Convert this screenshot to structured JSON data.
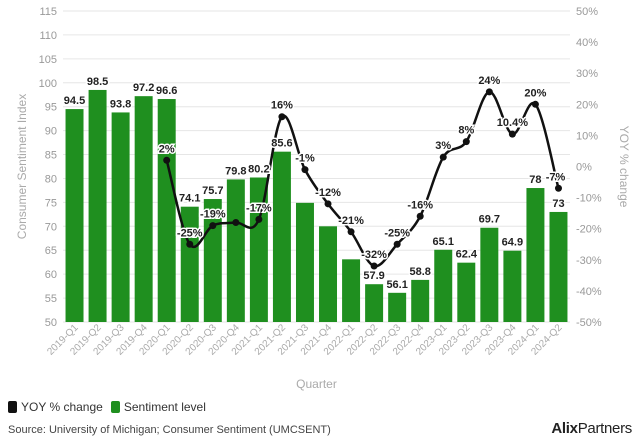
{
  "chart_data": {
    "type": "bar",
    "xlabel": "Quarter",
    "ylabel": "Consumer Sentiment Index",
    "y2label": "YOY % change",
    "ylim": [
      50,
      115
    ],
    "y2lim": [
      -50,
      50
    ],
    "yticks": [
      "50",
      "55",
      "60",
      "65",
      "70",
      "75",
      "80",
      "85",
      "90",
      "95",
      "100",
      "105",
      "110",
      "115"
    ],
    "y2ticks": [
      "-50%",
      "-40%",
      "-30%",
      "-20%",
      "-10%",
      "0%",
      "10%",
      "20%",
      "30%",
      "40%",
      "50%"
    ],
    "grid": true,
    "legend_position": "bottom-left",
    "categories": [
      "2019-Q1",
      "2019-Q2",
      "2019-Q3",
      "2019-Q4",
      "2020-Q1",
      "2020-Q2",
      "2020-Q3",
      "2020-Q4",
      "2021-Q1",
      "2021-Q2",
      "2021-Q3",
      "2021-Q4",
      "2022-Q1",
      "2022-Q2",
      "2022-Q3",
      "2022-Q4",
      "2023-Q1",
      "2023-Q2",
      "2023-Q3",
      "2023-Q4",
      "2024-Q1",
      "2024-Q2"
    ],
    "series": [
      {
        "name": "Sentiment level",
        "kind": "bar",
        "color": "#1f8f1f",
        "values": [
          94.5,
          98.5,
          93.8,
          97.2,
          96.6,
          74.1,
          75.7,
          79.8,
          80.2,
          85.6,
          74.9,
          70.0,
          63.1,
          57.9,
          56.1,
          58.8,
          65.1,
          62.4,
          69.7,
          64.9,
          78,
          73
        ],
        "labels": [
          "94.5",
          "98.5",
          "93.8",
          "97.2",
          "96.6",
          "74.1",
          "75.7",
          "79.8",
          "80.2",
          "85.6",
          "",
          "",
          "",
          "57.9",
          "56.1",
          "58.8",
          "65.1",
          "62.4",
          "69.7",
          "64.9",
          "78",
          "73"
        ]
      },
      {
        "name": "YOY % change",
        "kind": "line",
        "color": "#111111",
        "values": [
          null,
          null,
          null,
          null,
          2,
          -25,
          -19,
          -18,
          -17,
          16,
          -1,
          -12,
          -21,
          -32,
          -25,
          -16,
          3,
          8,
          24,
          10.4,
          20,
          -7
        ],
        "labels": [
          "",
          "",
          "",
          "",
          "2%",
          "-25%",
          "-19%",
          "",
          "-17%",
          "16%",
          "-1%",
          "-12%",
          "-21%",
          "-32%",
          "-25%",
          "-16%",
          "3%",
          "8%",
          "24%",
          "10.4%",
          "20%",
          "-7%"
        ]
      }
    ]
  },
  "source": "Source: University of Michigan; Consumer Sentiment (UMCSENT)",
  "brand": {
    "bold": "Alix",
    "light": "Partners"
  }
}
